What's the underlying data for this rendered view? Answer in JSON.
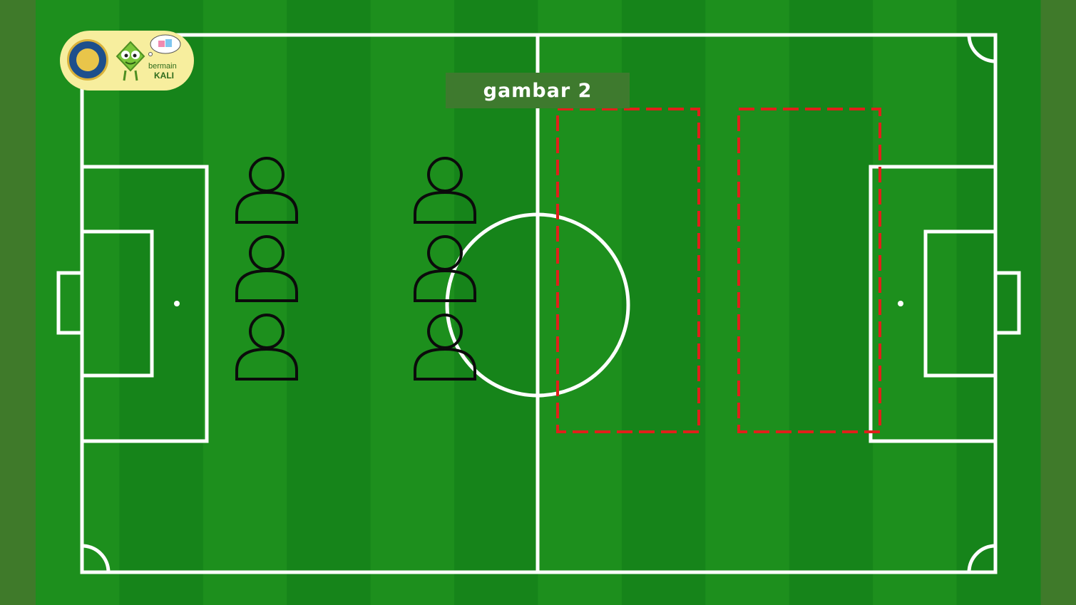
{
  "title": "gambar 2",
  "logo": {
    "brand_line1": "bermain",
    "brand_line2": "KALI",
    "seal_icon": "university-seal-icon",
    "mascot_icon": "green-mascot-icon"
  },
  "colors": {
    "outer_background": "#3f7a2a",
    "pitch_stripe_light": "#1d8f1d",
    "pitch_stripe_dark": "#16841a",
    "lines": "#ffffff",
    "zones": "#e0201a",
    "players": "#0b0b0b",
    "title_box": "#3e7a2e",
    "logo_badge": "#f7ee9e"
  },
  "players": {
    "count": 6,
    "icon": "person-outline-icon"
  },
  "zones": {
    "count": 2,
    "style": "dashed"
  }
}
